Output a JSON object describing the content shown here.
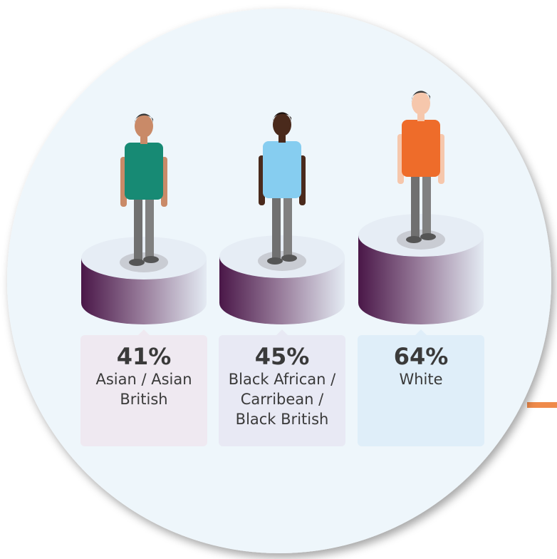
{
  "items": [
    {
      "value": "41%",
      "label": "Asian / Asian British"
    },
    {
      "value": "45%",
      "label": "Black African / Carribean / Black British"
    },
    {
      "value": "64%",
      "label": "White"
    }
  ]
}
